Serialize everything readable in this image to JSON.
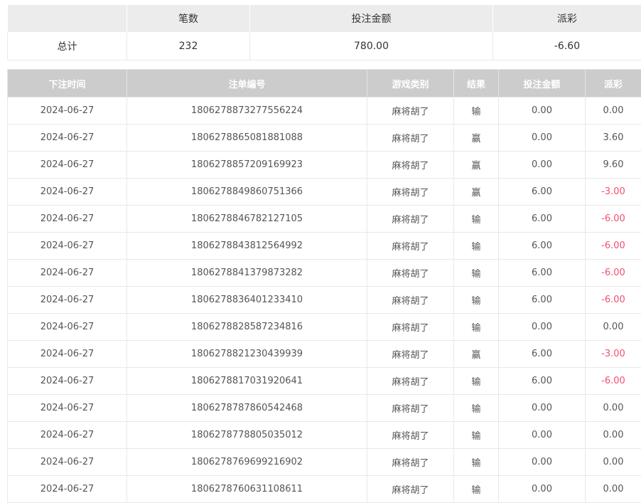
{
  "summary": {
    "headers": [
      "",
      "笔数",
      "投注金额",
      "派彩"
    ],
    "label": "总计",
    "count": "232",
    "amount": "780.00",
    "payout": "-6.60"
  },
  "bets": {
    "headers": [
      "下注时间",
      "注单编号",
      "游戏类别",
      "结果",
      "投注金额",
      "派彩"
    ],
    "rows": [
      [
        "2024-06-27",
        "1806278873277556224",
        "麻将胡了",
        "输",
        "0.00",
        "0.00"
      ],
      [
        "2024-06-27",
        "1806278865081881088",
        "麻将胡了",
        "赢",
        "0.00",
        "3.60"
      ],
      [
        "2024-06-27",
        "1806278857209169923",
        "麻将胡了",
        "赢",
        "0.00",
        "9.60"
      ],
      [
        "2024-06-27",
        "1806278849860751366",
        "麻将胡了",
        "赢",
        "6.00",
        "-3.00"
      ],
      [
        "2024-06-27",
        "1806278846782127105",
        "麻将胡了",
        "输",
        "6.00",
        "-6.00"
      ],
      [
        "2024-06-27",
        "1806278843812564992",
        "麻将胡了",
        "输",
        "6.00",
        "-6.00"
      ],
      [
        "2024-06-27",
        "1806278841379873282",
        "麻将胡了",
        "输",
        "6.00",
        "-6.00"
      ],
      [
        "2024-06-27",
        "1806278836401233410",
        "麻将胡了",
        "输",
        "6.00",
        "-6.00"
      ],
      [
        "2024-06-27",
        "1806278828587234816",
        "麻将胡了",
        "输",
        "0.00",
        "0.00"
      ],
      [
        "2024-06-27",
        "1806278821230439939",
        "麻将胡了",
        "赢",
        "6.00",
        "-3.00"
      ],
      [
        "2024-06-27",
        "1806278817031920641",
        "麻将胡了",
        "输",
        "6.00",
        "-6.00"
      ],
      [
        "2024-06-27",
        "1806278787860542468",
        "麻将胡了",
        "输",
        "0.00",
        "0.00"
      ],
      [
        "2024-06-27",
        "1806278778805035012",
        "麻将胡了",
        "输",
        "0.00",
        "0.00"
      ],
      [
        "2024-06-27",
        "1806278769699216902",
        "麻将胡了",
        "输",
        "0.00",
        "0.00"
      ],
      [
        "2024-06-27",
        "1806278760631108611",
        "麻将胡了",
        "输",
        "0.00",
        "0.00"
      ]
    ]
  },
  "colors": {
    "negative": "#f0506e",
    "header_bg": "#cccccc",
    "summary_header_bg": "#ececec"
  }
}
